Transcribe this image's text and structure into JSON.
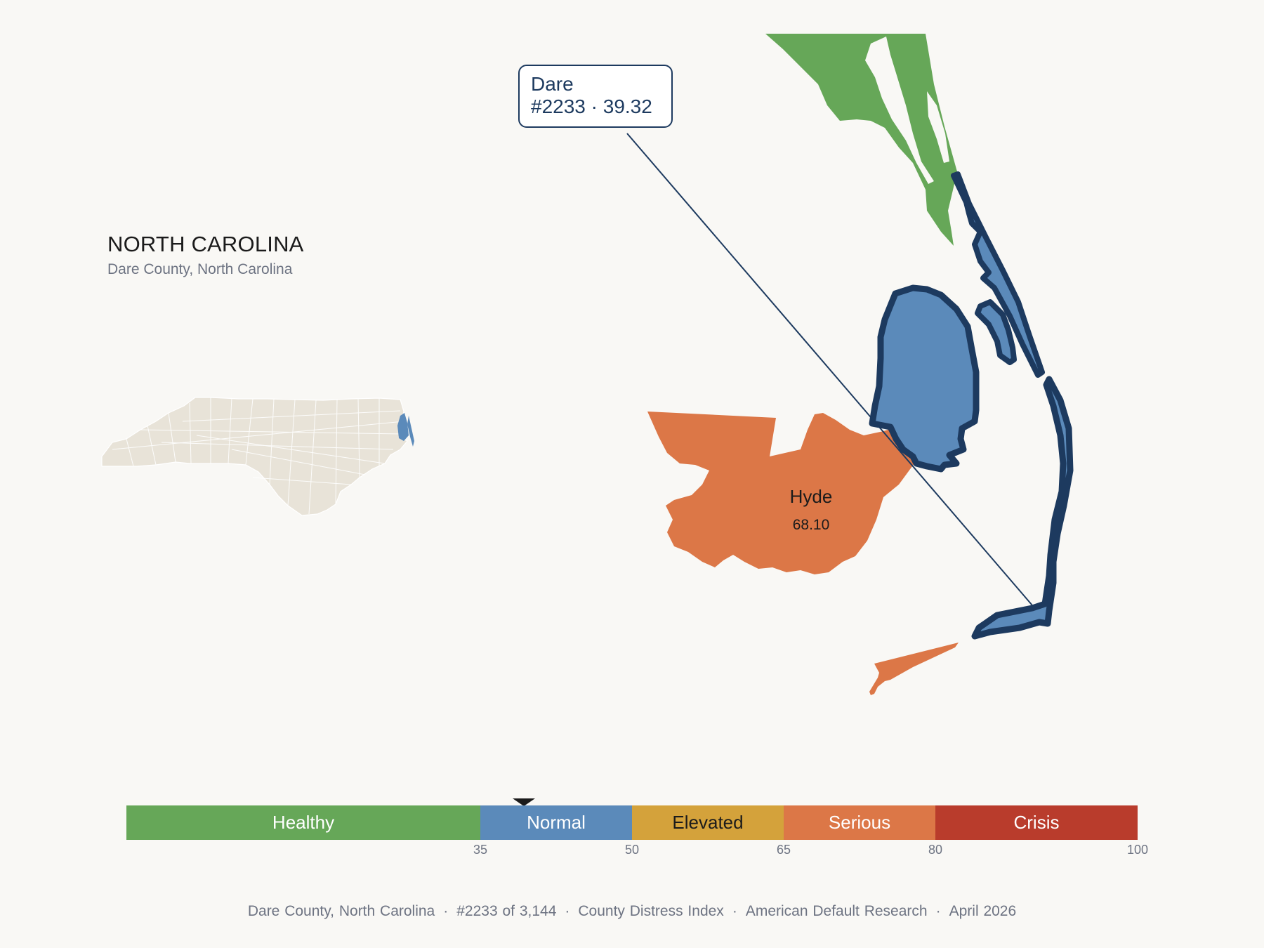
{
  "state": {
    "title": "NORTH CAROLINA",
    "subtitle": "Dare County, North Carolina"
  },
  "callout": {
    "name": "Dare",
    "detail": "#2233 · 39.32"
  },
  "neighbor": {
    "name": "Hyde",
    "value": "68.10"
  },
  "legend": {
    "current_value": 39.32,
    "segments": [
      {
        "label": "Healthy",
        "from": 0,
        "to": 35,
        "color": "#66a758"
      },
      {
        "label": "Normal",
        "from": 35,
        "to": 50,
        "color": "#5b8aba"
      },
      {
        "label": "Elevated",
        "from": 50,
        "to": 65,
        "color": "#d4a23b"
      },
      {
        "label": "Serious",
        "from": 65,
        "to": 80,
        "color": "#dc7747"
      },
      {
        "label": "Crisis",
        "from": 80,
        "to": 100,
        "color": "#b93c2c"
      }
    ],
    "ticks": [
      "35",
      "50",
      "65",
      "80",
      "100"
    ]
  },
  "colors": {
    "focus_fill": "#5b8aba",
    "focus_outline": "#1d3a5f",
    "north_neighbor": "#66a758",
    "south_neighbor": "#dc7747",
    "state_fill": "#e8e3d8"
  },
  "footer": {
    "county": "Dare County, North Carolina",
    "rank": "#2233 of 3,144",
    "index": "County Distress Index",
    "source": "American Default Research",
    "date": "April 2026"
  }
}
